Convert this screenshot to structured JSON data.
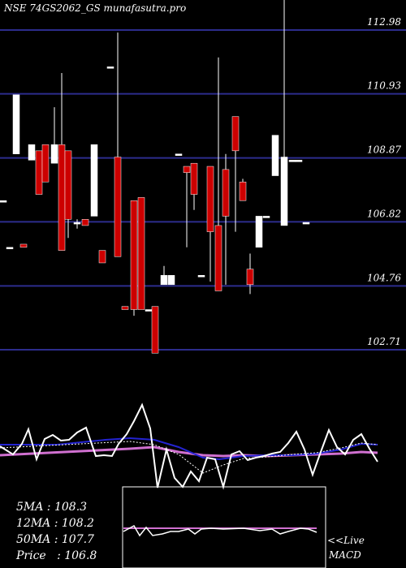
{
  "chart_data": {
    "type": "candlestick",
    "title": "NSE 74GS2062_GS munafasutra.pro",
    "price_ticks": [
      112.98,
      110.93,
      108.87,
      106.82,
      104.76,
      102.71
    ],
    "candles": [
      {
        "x": 4,
        "o": 107.5,
        "c": 107.5,
        "h": 107.5,
        "l": 107.5
      },
      {
        "x": 12,
        "o": 106.0,
        "c": 106.0,
        "h": 106.0,
        "l": 106.0
      },
      {
        "x": 29,
        "o": 106.1,
        "c": 106.0,
        "h": 106.1,
        "l": 106.0
      },
      {
        "x": 20,
        "o": 109.0,
        "c": 110.9,
        "h": 110.9,
        "l": 109.0
      },
      {
        "x": 39,
        "o": 108.8,
        "c": 109.3,
        "h": 109.3,
        "l": 108.8
      },
      {
        "x": 48,
        "o": 109.1,
        "c": 107.7,
        "h": 109.1,
        "l": 107.7
      },
      {
        "x": 56,
        "o": 109.3,
        "c": 108.1,
        "h": 109.3,
        "l": 108.1
      },
      {
        "x": 67,
        "o": 108.7,
        "c": 109.3,
        "h": 110.5,
        "l": 108.7
      },
      {
        "x": 76,
        "o": 109.3,
        "c": 105.9,
        "h": 111.6,
        "l": 105.9
      },
      {
        "x": 84,
        "o": 109.1,
        "c": 106.9,
        "h": 109.1,
        "l": 106.3
      },
      {
        "x": 95,
        "o": 106.8,
        "c": 106.8,
        "h": 106.9,
        "l": 106.6
      },
      {
        "x": 105,
        "o": 106.9,
        "c": 106.7,
        "h": 106.9,
        "l": 106.7
      },
      {
        "x": 116,
        "o": 107.0,
        "c": 109.3,
        "h": 109.3,
        "l": 107.0
      },
      {
        "x": 126,
        "o": 105.9,
        "c": 105.5,
        "h": 105.9,
        "l": 105.5
      },
      {
        "x": 136,
        "o": 111.8,
        "c": 111.8,
        "h": 111.8,
        "l": 111.8
      },
      {
        "x": 145,
        "o": 108.9,
        "c": 105.7,
        "h": 112.9,
        "l": 105.7
      },
      {
        "x": 154,
        "o": 104.1,
        "c": 104.0,
        "h": 104.1,
        "l": 104.0
      },
      {
        "x": 165,
        "o": 107.5,
        "c": 104.0,
        "h": 107.5,
        "l": 103.8
      },
      {
        "x": 174,
        "o": 107.6,
        "c": 104.0,
        "h": 107.6,
        "l": 104.0
      },
      {
        "x": 183,
        "o": 104.0,
        "c": 104.0,
        "h": 104.0,
        "l": 104.0
      },
      {
        "x": 191,
        "o": 104.1,
        "c": 102.6,
        "h": 104.1,
        "l": 102.6
      },
      {
        "x": 202,
        "o": 104.8,
        "c": 105.1,
        "h": 105.4,
        "l": 104.8
      },
      {
        "x": 211,
        "o": 104.8,
        "c": 105.1,
        "h": 105.1,
        "l": 104.8
      },
      {
        "x": 220,
        "o": 109.0,
        "c": 109.0,
        "h": 109.0,
        "l": 109.0
      },
      {
        "x": 230,
        "o": 108.6,
        "c": 108.4,
        "h": 108.6,
        "l": 106.0
      },
      {
        "x": 239,
        "o": 108.7,
        "c": 107.7,
        "h": 108.7,
        "l": 107.2
      },
      {
        "x": 248,
        "o": 105.1,
        "c": 105.1,
        "h": 105.1,
        "l": 105.1
      },
      {
        "x": 259,
        "o": 108.6,
        "c": 106.5,
        "h": 108.6,
        "l": 104.9
      },
      {
        "x": 269,
        "o": 106.7,
        "c": 104.6,
        "h": 112.1,
        "l": 104.6
      },
      {
        "x": 278,
        "o": 108.5,
        "c": 107.0,
        "h": 109.0,
        "l": 104.8
      },
      {
        "x": 290,
        "o": 110.2,
        "c": 109.1,
        "h": 110.2,
        "l": 106.5
      },
      {
        "x": 299,
        "o": 108.1,
        "c": 107.5,
        "h": 108.2,
        "l": 107.5
      },
      {
        "x": 308,
        "o": 105.3,
        "c": 104.8,
        "h": 105.8,
        "l": 104.5
      },
      {
        "x": 319,
        "o": 106.0,
        "c": 107.0,
        "h": 107.0,
        "l": 106.0
      },
      {
        "x": 328,
        "o": 107.0,
        "c": 107.0,
        "h": 107.0,
        "l": 107.0
      },
      {
        "x": 339,
        "o": 108.3,
        "c": 109.6,
        "h": 109.6,
        "l": 108.3
      },
      {
        "x": 350,
        "o": 106.7,
        "c": 108.9,
        "h": 114.0,
        "l": 106.7
      },
      {
        "x": 360,
        "o": 108.8,
        "c": 108.8,
        "h": 108.8,
        "l": 108.8
      },
      {
        "x": 368,
        "o": 108.8,
        "c": 108.8,
        "h": 108.8,
        "l": 108.8
      },
      {
        "x": 377,
        "o": 106.8,
        "c": 106.8,
        "h": 106.8,
        "l": 106.8
      }
    ],
    "indicator_lines": {
      "price_line_white": [
        [
          0,
          550
        ],
        [
          8,
          555
        ],
        [
          16,
          560
        ],
        [
          27,
          547
        ],
        [
          35,
          529
        ],
        [
          45,
          566
        ],
        [
          55,
          541
        ],
        [
          65,
          536
        ],
        [
          75,
          543
        ],
        [
          85,
          542
        ],
        [
          95,
          533
        ],
        [
          106,
          527
        ],
        [
          118,
          562
        ],
        [
          128,
          561
        ],
        [
          138,
          562
        ],
        [
          146,
          547
        ],
        [
          156,
          535
        ],
        [
          165,
          519
        ],
        [
          175,
          499
        ],
        [
          185,
          528
        ],
        [
          194,
          601
        ],
        [
          205,
          554
        ],
        [
          215,
          589
        ],
        [
          225,
          600
        ],
        [
          235,
          581
        ],
        [
          245,
          593
        ],
        [
          255,
          564
        ],
        [
          265,
          566
        ],
        [
          275,
          600
        ],
        [
          285,
          560
        ],
        [
          295,
          556
        ],
        [
          305,
          567
        ],
        [
          315,
          564
        ],
        [
          325,
          562
        ],
        [
          335,
          559
        ],
        [
          345,
          557
        ],
        [
          355,
          546
        ],
        [
          365,
          532
        ],
        [
          375,
          554
        ],
        [
          385,
          585
        ],
        [
          395,
          557
        ],
        [
          405,
          530
        ],
        [
          415,
          551
        ],
        [
          425,
          560
        ],
        [
          435,
          542
        ],
        [
          445,
          535
        ],
        [
          455,
          553
        ],
        [
          465,
          569
        ]
      ],
      "dotted_ma_white": [
        [
          0,
          552
        ],
        [
          40,
          550
        ],
        [
          80,
          548
        ],
        [
          120,
          546
        ],
        [
          160,
          544
        ],
        [
          190,
          548
        ],
        [
          220,
          560
        ],
        [
          250,
          583
        ],
        [
          275,
          573
        ],
        [
          300,
          565
        ],
        [
          330,
          563
        ],
        [
          360,
          560
        ],
        [
          390,
          558
        ],
        [
          420,
          552
        ],
        [
          445,
          546
        ],
        [
          465,
          548
        ]
      ],
      "ma_blue": [
        [
          0,
          548
        ],
        [
          40,
          548
        ],
        [
          70,
          548
        ],
        [
          100,
          545
        ],
        [
          130,
          542
        ],
        [
          160,
          540
        ],
        [
          190,
          542
        ],
        [
          220,
          551
        ],
        [
          250,
          564
        ],
        [
          270,
          566
        ],
        [
          300,
          562
        ],
        [
          330,
          561
        ],
        [
          360,
          561
        ],
        [
          390,
          559
        ],
        [
          420,
          554
        ],
        [
          445,
          547
        ],
        [
          465,
          548
        ]
      ],
      "ma_magenta": [
        [
          0,
          561
        ],
        [
          40,
          559
        ],
        [
          80,
          557
        ],
        [
          120,
          555
        ],
        [
          160,
          553
        ],
        [
          190,
          551
        ],
        [
          220,
          557
        ],
        [
          250,
          561
        ],
        [
          275,
          562
        ],
        [
          300,
          561
        ],
        [
          330,
          562
        ],
        [
          360,
          561
        ],
        [
          390,
          560
        ],
        [
          420,
          559
        ],
        [
          445,
          557
        ],
        [
          465,
          558
        ]
      ],
      "macd_white": [
        [
          152,
          655
        ],
        [
          165,
          648
        ],
        [
          172,
          660
        ],
        [
          180,
          650
        ],
        [
          188,
          660
        ],
        [
          200,
          658
        ],
        [
          210,
          655
        ],
        [
          220,
          655
        ],
        [
          232,
          652
        ],
        [
          240,
          658
        ],
        [
          248,
          652
        ],
        [
          260,
          651
        ],
        [
          275,
          652
        ],
        [
          300,
          651
        ],
        [
          320,
          654
        ],
        [
          335,
          652
        ],
        [
          345,
          658
        ],
        [
          355,
          655
        ],
        [
          370,
          651
        ],
        [
          380,
          652
        ],
        [
          390,
          656
        ]
      ],
      "macd_magenta": [
        [
          152,
          651
        ],
        [
          200,
          651
        ],
        [
          250,
          651
        ],
        [
          300,
          651
        ],
        [
          350,
          651
        ],
        [
          390,
          651
        ]
      ]
    },
    "legend": {
      "ma5": "5MA : 108.3",
      "ma12": "12MA : 108.2",
      "ma50": "50MA : 107.7",
      "price": "Price   : 106.8"
    },
    "macd_label_1": "<<Live",
    "macd_label_2": "MACD",
    "colors": {
      "background": "#000000",
      "gridline": "#2c2c8c",
      "up_candle": "#ffffff",
      "down_candle": "#cc0000",
      "ma_blue": "#2323d0",
      "ma_magenta": "#d070d0"
    }
  }
}
